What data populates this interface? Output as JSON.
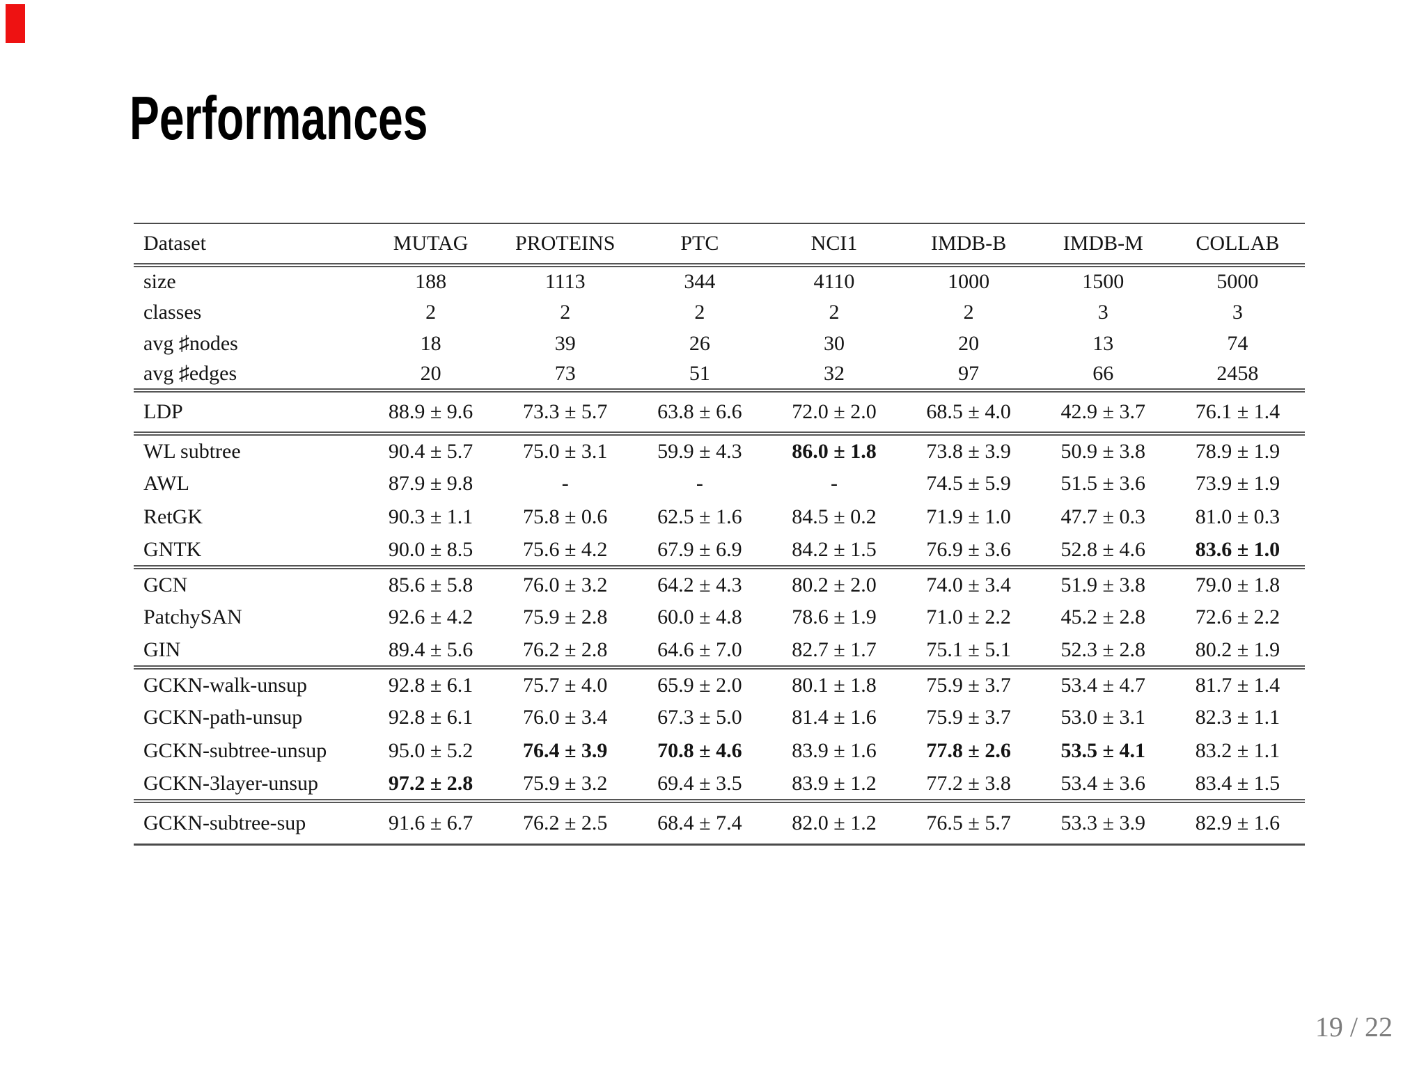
{
  "slide": {
    "title": "Performances",
    "page_indicator": "19 / 22",
    "accent_bar_color": "#ee1212",
    "page_number_color": "#7c7c7c"
  },
  "table": {
    "columns": [
      "Dataset",
      "MUTAG",
      "PROTEINS",
      "PTC",
      "NCI1",
      "IMDB-B",
      "IMDB-M",
      "COLLAB"
    ],
    "stats_rows": [
      {
        "label": "size",
        "values": [
          "188",
          "1113",
          "344",
          "4110",
          "1000",
          "1500",
          "5000"
        ],
        "bold": []
      },
      {
        "label": "classes",
        "values": [
          "2",
          "2",
          "2",
          "2",
          "2",
          "3",
          "3"
        ],
        "bold": []
      },
      {
        "label": "avg ♯nodes",
        "values": [
          "18",
          "39",
          "26",
          "30",
          "20",
          "13",
          "74"
        ],
        "bold": []
      },
      {
        "label": "avg ♯edges",
        "values": [
          "20",
          "73",
          "51",
          "32",
          "97",
          "66",
          "2458"
        ],
        "bold": []
      }
    ],
    "sections": [
      [
        {
          "label": "LDP",
          "values": [
            "88.9 ± 9.6",
            "73.3 ± 5.7",
            "63.8 ± 6.6",
            "72.0 ± 2.0",
            "68.5 ± 4.0",
            "42.9 ± 3.7",
            "76.1 ± 1.4"
          ],
          "bold": []
        }
      ],
      [
        {
          "label": "WL subtree",
          "values": [
            "90.4 ± 5.7",
            "75.0 ± 3.1",
            "59.9 ± 4.3",
            "86.0 ± 1.8",
            "73.8 ± 3.9",
            "50.9 ± 3.8",
            "78.9 ± 1.9"
          ],
          "bold": [
            3
          ]
        },
        {
          "label": "AWL",
          "values": [
            "87.9 ± 9.8",
            "-",
            "-",
            "-",
            "74.5 ± 5.9",
            "51.5 ± 3.6",
            "73.9 ± 1.9"
          ],
          "bold": []
        },
        {
          "label": "RetGK",
          "values": [
            "90.3 ± 1.1",
            "75.8 ± 0.6",
            "62.5 ± 1.6",
            "84.5 ± 0.2",
            "71.9 ± 1.0",
            "47.7 ± 0.3",
            "81.0 ± 0.3"
          ],
          "bold": []
        },
        {
          "label": "GNTK",
          "values": [
            "90.0 ± 8.5",
            "75.6 ± 4.2",
            "67.9 ± 6.9",
            "84.2 ± 1.5",
            "76.9 ± 3.6",
            "52.8 ± 4.6",
            "83.6 ± 1.0"
          ],
          "bold": [
            6
          ]
        }
      ],
      [
        {
          "label": "GCN",
          "values": [
            "85.6 ± 5.8",
            "76.0 ± 3.2",
            "64.2 ± 4.3",
            "80.2 ± 2.0",
            "74.0 ± 3.4",
            "51.9 ± 3.8",
            "79.0 ± 1.8"
          ],
          "bold": []
        },
        {
          "label": "PatchySAN",
          "values": [
            "92.6 ± 4.2",
            "75.9 ± 2.8",
            "60.0 ± 4.8",
            "78.6 ± 1.9",
            "71.0 ± 2.2",
            "45.2 ± 2.8",
            "72.6 ± 2.2"
          ],
          "bold": []
        },
        {
          "label": "GIN",
          "values": [
            "89.4 ± 5.6",
            "76.2 ± 2.8",
            "64.6 ± 7.0",
            "82.7 ± 1.7",
            "75.1 ± 5.1",
            "52.3 ± 2.8",
            "80.2 ± 1.9"
          ],
          "bold": []
        }
      ],
      [
        {
          "label": "GCKN-walk-unsup",
          "values": [
            "92.8 ± 6.1",
            "75.7 ± 4.0",
            "65.9 ± 2.0",
            "80.1 ± 1.8",
            "75.9 ± 3.7",
            "53.4 ± 4.7",
            "81.7 ± 1.4"
          ],
          "bold": []
        },
        {
          "label": "GCKN-path-unsup",
          "values": [
            "92.8 ± 6.1",
            "76.0 ± 3.4",
            "67.3 ± 5.0",
            "81.4 ± 1.6",
            "75.9 ± 3.7",
            "53.0 ± 3.1",
            "82.3 ± 1.1"
          ],
          "bold": []
        },
        {
          "label": "GCKN-subtree-unsup",
          "values": [
            "95.0 ± 5.2",
            "76.4 ± 3.9",
            "70.8 ± 4.6",
            "83.9 ± 1.6",
            "77.8 ± 2.6",
            "53.5 ± 4.1",
            "83.2 ± 1.1"
          ],
          "bold": [
            1,
            2,
            4,
            5
          ]
        },
        {
          "label": "GCKN-3layer-unsup",
          "values": [
            "97.2 ± 2.8",
            "75.9 ± 3.2",
            "69.4 ± 3.5",
            "83.9 ± 1.2",
            "77.2 ± 3.8",
            "53.4 ± 3.6",
            "83.4 ± 1.5"
          ],
          "bold": [
            0
          ]
        }
      ],
      [
        {
          "label": "GCKN-subtree-sup",
          "values": [
            "91.6 ± 6.7",
            "76.2 ± 2.5",
            "68.4 ± 7.4",
            "82.0 ± 1.2",
            "76.5 ± 5.7",
            "53.3 ± 3.9",
            "82.9 ± 1.6"
          ],
          "bold": []
        }
      ]
    ]
  }
}
